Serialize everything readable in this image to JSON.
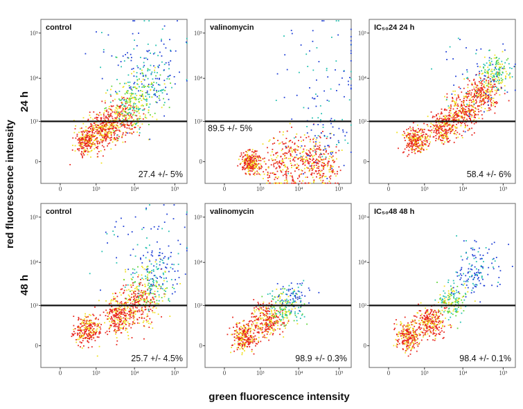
{
  "figure": {
    "xlabel": "green fluorescence intensity",
    "ylabel": "red fluorescence intensity",
    "row_labels": [
      "24 h",
      "48 h"
    ]
  },
  "colors": {
    "density_low": "#1f3fd6",
    "density_mid_low": "#22c0b0",
    "density_mid": "#5fd43a",
    "density_mid_high": "#f0e020",
    "density_high": "#e8251c",
    "gate_line": "#111111"
  },
  "chart_data": [
    {
      "type": "scatter",
      "row": "24 h",
      "title": "control",
      "xscale": "logicle",
      "yscale": "logicle",
      "xticks": [
        "0",
        "10³",
        "10⁴",
        "10⁵"
      ],
      "yticks": [
        "0",
        "10³",
        "10⁴",
        "10⁵"
      ],
      "gate_y": 1000,
      "stat": "27.4 +/- 5%",
      "stat_position": "bottom-right",
      "population": [
        {
          "x": 500,
          "y": 300,
          "spread": 0.12,
          "density": "high"
        },
        {
          "x": 1500,
          "y": 600,
          "spread": 0.14,
          "density": "high"
        },
        {
          "x": 4000,
          "y": 1200,
          "spread": 0.18,
          "density": "high"
        },
        {
          "x": 8000,
          "y": 2500,
          "spread": 0.22,
          "density": "mid"
        },
        {
          "x": 15000,
          "y": 5000,
          "spread": 0.25,
          "density": "mid"
        },
        {
          "x": 30000,
          "y": 10000,
          "spread": 0.25,
          "density": "low"
        },
        {
          "x": 15000,
          "y": 30000,
          "spread": 0.45,
          "density": "low"
        }
      ]
    },
    {
      "type": "scatter",
      "row": "24 h",
      "title": "valinomycin",
      "xscale": "logicle",
      "yscale": "logicle",
      "xticks": [
        "0",
        "10³",
        "10⁴",
        "10⁵"
      ],
      "yticks": [
        "0",
        "10³",
        "10⁴",
        "10⁵"
      ],
      "gate_y": 1000,
      "stat": "89.5 +/- 5%",
      "stat_position": "top-left",
      "population": [
        {
          "x": 500,
          "y": 0,
          "spread": 0.1,
          "density": "high"
        },
        {
          "x": 5000,
          "y": 0,
          "spread": 0.25,
          "density": "high"
        },
        {
          "x": 30000,
          "y": 0,
          "spread": 0.2,
          "density": "high"
        },
        {
          "x": 40000,
          "y": 300,
          "spread": 0.3,
          "density": "low"
        },
        {
          "x": 40000,
          "y": 15000,
          "spread": 0.5,
          "density": "low"
        }
      ]
    },
    {
      "type": "scatter",
      "row": "24 h",
      "title": "IC₅₀24 24 h",
      "xscale": "logicle",
      "yscale": "logicle",
      "xticks": [
        "0",
        "10³",
        "10⁴",
        "10⁵"
      ],
      "yticks": [
        "0",
        "10³",
        "10⁴",
        "10⁵"
      ],
      "gate_y": 1000,
      "stat": "58.4 +/- 6%",
      "stat_position": "bottom-right",
      "population": [
        {
          "x": 500,
          "y": 300,
          "spread": 0.12,
          "density": "high"
        },
        {
          "x": 3000,
          "y": 700,
          "spread": 0.14,
          "density": "high"
        },
        {
          "x": 10000,
          "y": 1800,
          "spread": 0.15,
          "density": "high"
        },
        {
          "x": 30000,
          "y": 5000,
          "spread": 0.15,
          "density": "high"
        },
        {
          "x": 70000,
          "y": 15000,
          "spread": 0.15,
          "density": "mid"
        },
        {
          "x": 20000,
          "y": 10000,
          "spread": 0.4,
          "density": "low"
        }
      ]
    },
    {
      "type": "scatter",
      "row": "48 h",
      "title": "control",
      "xscale": "logicle",
      "yscale": "logicle",
      "xticks": [
        "0",
        "10³",
        "10⁴",
        "10⁵"
      ],
      "yticks": [
        "0",
        "10³",
        "10⁴",
        "10⁵"
      ],
      "gate_y": 1000,
      "stat": "25.7 +/- 4.5%",
      "stat_position": "bottom-right",
      "population": [
        {
          "x": 500,
          "y": 200,
          "spread": 0.12,
          "density": "high"
        },
        {
          "x": 4000,
          "y": 500,
          "spread": 0.15,
          "density": "high"
        },
        {
          "x": 12000,
          "y": 1200,
          "spread": 0.2,
          "density": "high"
        },
        {
          "x": 25000,
          "y": 3000,
          "spread": 0.22,
          "density": "mid"
        },
        {
          "x": 40000,
          "y": 7000,
          "spread": 0.22,
          "density": "low"
        },
        {
          "x": 20000,
          "y": 25000,
          "spread": 0.45,
          "density": "low"
        }
      ]
    },
    {
      "type": "scatter",
      "row": "48 h",
      "title": "valinomycin",
      "xscale": "logicle",
      "yscale": "logicle",
      "xticks": [
        "0",
        "10³",
        "10⁴",
        "10⁵"
      ],
      "yticks": [
        "0",
        "10³",
        "10⁴",
        "10⁵"
      ],
      "gate_y": 1000,
      "stat": "98.9 +/- 0.3%",
      "stat_position": "bottom-right",
      "population": [
        {
          "x": 300,
          "y": 100,
          "spread": 0.12,
          "density": "high"
        },
        {
          "x": 1500,
          "y": 400,
          "spread": 0.15,
          "density": "high"
        },
        {
          "x": 4000,
          "y": 900,
          "spread": 0.15,
          "density": "mid"
        },
        {
          "x": 8000,
          "y": 1500,
          "spread": 0.15,
          "density": "low"
        }
      ]
    },
    {
      "type": "scatter",
      "row": "48 h",
      "title": "IC₅₀48 48 h",
      "xscale": "logicle",
      "yscale": "logicle",
      "xticks": [
        "0",
        "10³",
        "10⁴",
        "10⁵"
      ],
      "yticks": [
        "0",
        "10³",
        "10⁴",
        "10⁵"
      ],
      "gate_y": 1000,
      "stat": "98.4 +/- 0.1%",
      "stat_position": "bottom-right",
      "population": [
        {
          "x": 300,
          "y": 100,
          "spread": 0.12,
          "density": "high"
        },
        {
          "x": 1500,
          "y": 400,
          "spread": 0.14,
          "density": "high"
        },
        {
          "x": 5000,
          "y": 1300,
          "spread": 0.15,
          "density": "mid"
        },
        {
          "x": 15000,
          "y": 4000,
          "spread": 0.18,
          "density": "low"
        },
        {
          "x": 30000,
          "y": 10000,
          "spread": 0.2,
          "density": "low"
        }
      ]
    }
  ]
}
